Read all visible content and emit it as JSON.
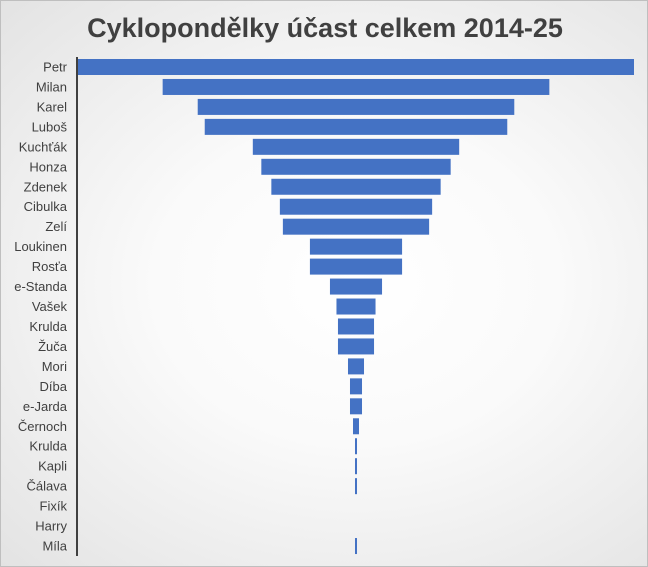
{
  "chart_data": {
    "type": "bar",
    "orientation": "horizontal",
    "alignment": "centered",
    "title": "Cyklopondělky účast celkem 2014-25",
    "categories": [
      "Petr",
      "Milan",
      "Karel",
      "Luboš",
      "Kuchťák",
      "Honza",
      "Zdenek",
      "Cibulka",
      "Zelí",
      "Loukinen",
      "Rosťa",
      "e-Standa",
      "Vašek",
      "Krulda",
      "Žuča",
      "Mori",
      "Díba",
      "e-Jarda",
      "Černoch",
      "Krulda",
      "Kapli",
      "Čálava",
      "Fixík",
      "Harry",
      "Míla"
    ],
    "values": [
      555,
      386,
      316,
      302,
      206,
      189,
      169,
      152,
      146,
      92,
      92,
      52,
      39,
      36,
      36,
      16,
      12,
      12,
      6,
      2,
      2,
      2,
      0,
      0,
      2
    ],
    "bar_color": "#4472c4",
    "xlabel": "",
    "ylabel": "",
    "grid": false,
    "legend": "none"
  }
}
